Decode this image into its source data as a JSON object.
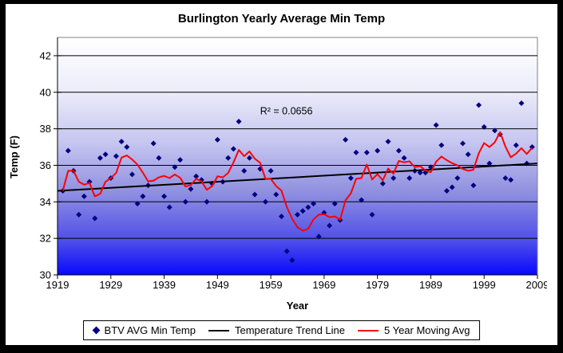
{
  "colors": {
    "scatter": "#000080",
    "trend_line": "#000000",
    "moving_avg": "#FF0000",
    "gridline": "#000000",
    "plot_border": "#808080",
    "frame_border": "#000000",
    "plot_gradient": [
      "#FFFFFF",
      "#EDEDFA",
      "#C4C4F0",
      "#9090E0",
      "#4D4DEA",
      "#0808FF"
    ],
    "plot_gradient_offsets": [
      0,
      0.22,
      0.45,
      0.65,
      0.86,
      1
    ]
  },
  "legend": {
    "items": [
      {
        "label": "BTV AVG Min Temp",
        "marker": "diamond",
        "color": "#000080"
      },
      {
        "label": "Temperature Trend Line",
        "marker": "line",
        "color": "#000000"
      },
      {
        "label": "5 Year Moving Avg",
        "marker": "line",
        "color": "#FF0000"
      }
    ],
    "position": "bottom"
  },
  "chart_data": {
    "type": "scatter",
    "title": "Burlington Yearly Average Min Temp",
    "xlabel": "Year",
    "ylabel": "Temp (F)",
    "xlim": [
      1919,
      2009
    ],
    "ylim": [
      30,
      43
    ],
    "x_ticks": [
      1919,
      1929,
      1939,
      1949,
      1959,
      1969,
      1979,
      1989,
      1999,
      2009
    ],
    "y_ticks": [
      30,
      32,
      34,
      36,
      38,
      40,
      42
    ],
    "gridlines": "horizontal",
    "series": [
      {
        "name": "BTV AVG Min Temp",
        "kind": "scatter",
        "color": "#000080",
        "x": [
          1920,
          1921,
          1922,
          1923,
          1924,
          1925,
          1926,
          1927,
          1928,
          1929,
          1930,
          1931,
          1932,
          1933,
          1934,
          1935,
          1936,
          1937,
          1938,
          1939,
          1940,
          1941,
          1942,
          1943,
          1944,
          1945,
          1946,
          1947,
          1948,
          1949,
          1950,
          1951,
          1952,
          1953,
          1954,
          1955,
          1956,
          1957,
          1958,
          1959,
          1960,
          1961,
          1962,
          1963,
          1964,
          1965,
          1966,
          1967,
          1968,
          1969,
          1970,
          1971,
          1972,
          1973,
          1974,
          1975,
          1976,
          1977,
          1978,
          1979,
          1980,
          1981,
          1982,
          1983,
          1984,
          1985,
          1986,
          1987,
          1988,
          1989,
          1990,
          1991,
          1992,
          1993,
          1994,
          1995,
          1996,
          1997,
          1998,
          1999,
          2000,
          2001,
          2002,
          2003,
          2004,
          2005,
          2006,
          2007,
          2008
        ],
        "y": [
          34.6,
          36.8,
          35.7,
          33.3,
          34.3,
          35.1,
          33.1,
          36.4,
          36.6,
          35.3,
          36.5,
          37.3,
          37.0,
          35.5,
          33.9,
          34.3,
          34.9,
          37.2,
          36.4,
          34.3,
          33.7,
          35.9,
          36.3,
          34.0,
          34.7,
          35.4,
          35.2,
          34.0,
          35.0,
          37.4,
          35.1,
          36.4,
          36.9,
          38.4,
          35.7,
          36.4,
          34.4,
          35.8,
          34.0,
          35.7,
          34.4,
          33.2,
          31.3,
          30.8,
          33.3,
          33.5,
          33.7,
          33.9,
          32.1,
          33.4,
          32.7,
          33.9,
          33.0,
          37.4,
          35.3,
          36.7,
          34.1,
          36.7,
          33.3,
          36.8,
          35.0,
          37.3,
          35.3,
          36.8,
          36.4,
          35.3,
          35.7,
          35.6,
          35.6,
          35.9,
          38.2,
          37.1,
          34.6,
          34.8,
          35.3,
          37.2,
          36.6,
          34.9,
          39.3,
          38.1,
          36.1,
          37.9,
          37.7,
          35.3,
          35.2,
          37.1,
          39.4,
          36.1,
          37.0
        ]
      },
      {
        "name": "Temperature Trend Line",
        "kind": "line",
        "color": "#000000",
        "x": [
          1919,
          2009
        ],
        "y": [
          34.6,
          36.1
        ]
      },
      {
        "name": "5 Year Moving Avg",
        "kind": "moving_average",
        "color": "#FF0000",
        "window": 5,
        "source_series": "BTV AVG Min Temp"
      }
    ],
    "annotations": [
      {
        "text": "R² = 0.0656",
        "x": 1957,
        "y": 38.8
      }
    ]
  }
}
